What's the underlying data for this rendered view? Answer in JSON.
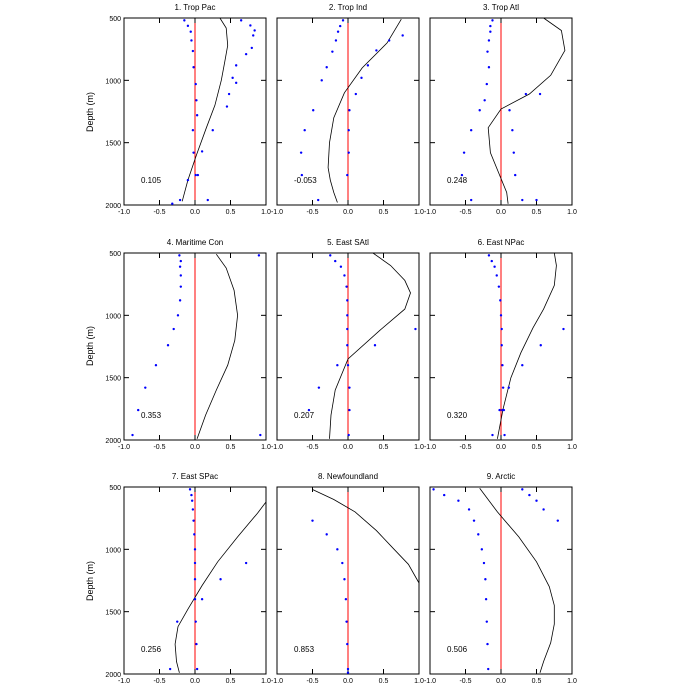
{
  "figure": {
    "ylabel": "Depth (m)",
    "y_ticks": [
      "500",
      "1000",
      "1500",
      "2000"
    ],
    "x_ticks": [
      "-1.0",
      "-0.5",
      "0.0",
      "0.5",
      "1.0"
    ]
  },
  "colors": {
    "curve": "#000000",
    "points": "#0000ff",
    "zero_line": "#ff0000",
    "frame": "#000000"
  },
  "chart_data": [
    {
      "type": "line",
      "title": "1. Trop Pac",
      "annotation": "0.105",
      "xlim": [
        -1,
        1
      ],
      "ylim": [
        500,
        2000
      ],
      "y_inverted": true,
      "line": {
        "x": [
          0.35,
          0.44,
          0.46,
          0.42,
          0.37,
          0.28,
          0.16,
          0.02,
          -0.1,
          -0.18
        ],
        "y": [
          500,
          580,
          720,
          850,
          1000,
          1200,
          1380,
          1600,
          1800,
          1970
        ]
      },
      "points": {
        "x": [
          -0.15,
          -0.1,
          -0.06,
          -0.05,
          -0.03,
          -0.02,
          0.01,
          0.02,
          0.03,
          -0.03,
          -0.02,
          0.04,
          0.18,
          0.48,
          0.53,
          0.58,
          0.72,
          0.8,
          0.82,
          0.84,
          0.78,
          0.65,
          0.58,
          0.45,
          0.25,
          0.1,
          0.01,
          -0.1,
          -0.21,
          -0.32
        ],
        "y": [
          519,
          563,
          610,
          680,
          765,
          895,
          1030,
          1160,
          1280,
          1400,
          1580,
          1760,
          1960,
          1110,
          980,
          880,
          790,
          740,
          640,
          600,
          560,
          519,
          1020,
          1210,
          1400,
          1570,
          1760,
          1800,
          1960,
          1990
        ]
      }
    },
    {
      "type": "line",
      "title": "2. Trop Ind",
      "annotation": "-0.053",
      "xlim": [
        -1,
        1
      ],
      "ylim": [
        500,
        2000
      ],
      "y_inverted": true,
      "line": {
        "x": [
          0.75,
          0.55,
          0.2,
          -0.05,
          -0.2,
          -0.26,
          -0.28,
          -0.25,
          -0.2,
          -0.15
        ],
        "y": [
          510,
          700,
          900,
          1100,
          1300,
          1500,
          1700,
          1800,
          1900,
          1980
        ]
      },
      "points": {
        "x": [
          -0.07,
          -0.11,
          -0.14,
          -0.17,
          -0.22,
          -0.3,
          -0.37,
          -0.49,
          -0.61,
          -0.66,
          -0.65,
          -0.42,
          -0.01,
          0.01,
          0.01,
          0.02,
          0.11,
          0.19,
          0.28,
          0.4,
          0.58,
          0.77
        ],
        "y": [
          519,
          565,
          610,
          680,
          770,
          895,
          1000,
          1240,
          1400,
          1580,
          1760,
          1960,
          1760,
          1580,
          1400,
          1240,
          1110,
          980,
          880,
          760,
          680,
          640
        ]
      }
    },
    {
      "type": "line",
      "title": "3. Trop Atl",
      "annotation": "0.248",
      "xlim": [
        -1,
        1
      ],
      "ylim": [
        500,
        2000
      ],
      "y_inverted": true,
      "line": {
        "x": [
          0.6,
          0.85,
          0.9,
          0.7,
          0.4,
          0.0,
          -0.18,
          -0.15,
          -0.02,
          0.08,
          0.1
        ],
        "y": [
          500,
          600,
          760,
          960,
          1110,
          1230,
          1380,
          1580,
          1760,
          1900,
          1990
        ]
      },
      "points": {
        "x": [
          -0.12,
          -0.15,
          -0.15,
          -0.17,
          -0.19,
          -0.17,
          -0.2,
          -0.23,
          -0.3,
          -0.42,
          -0.52,
          -0.55,
          -0.42,
          0.12,
          0.16,
          0.18,
          0.2,
          0.3,
          0.35,
          0.5,
          0.55
        ],
        "y": [
          519,
          565,
          610,
          680,
          770,
          895,
          1030,
          1160,
          1240,
          1400,
          1580,
          1760,
          1960,
          1240,
          1400,
          1580,
          1760,
          1960,
          1110,
          1960,
          1110
        ]
      }
    },
    {
      "type": "line",
      "title": "4. Maritime Con",
      "annotation": "0.353",
      "xlim": [
        -1,
        1
      ],
      "ylim": [
        500,
        2000
      ],
      "y_inverted": true,
      "line": {
        "x": [
          0.3,
          0.44,
          0.55,
          0.6,
          0.56,
          0.46,
          0.3,
          0.15,
          0.03
        ],
        "y": [
          510,
          620,
          800,
          1000,
          1200,
          1400,
          1600,
          1800,
          1990
        ]
      },
      "points": {
        "x": [
          -0.22,
          -0.2,
          -0.21,
          -0.2,
          -0.2,
          -0.21,
          -0.24,
          -0.3,
          -0.38,
          -0.55,
          -0.7,
          -0.8,
          -0.88,
          0.9,
          0.92
        ],
        "y": [
          519,
          565,
          610,
          680,
          770,
          880,
          1000,
          1110,
          1240,
          1400,
          1580,
          1760,
          1960,
          519,
          1960
        ]
      }
    },
    {
      "type": "line",
      "title": "5. East SAtl",
      "annotation": "0.207",
      "xlim": [
        -1,
        1
      ],
      "ylim": [
        500,
        2000
      ],
      "y_inverted": true,
      "line": {
        "x": [
          0.35,
          0.6,
          0.8,
          0.88,
          0.8,
          0.45,
          0.0,
          -0.18,
          -0.24,
          -0.26
        ],
        "y": [
          500,
          600,
          720,
          820,
          950,
          1120,
          1350,
          1600,
          1800,
          1990
        ]
      },
      "points": {
        "x": [
          -0.25,
          -0.18,
          -0.1,
          -0.05,
          -0.02,
          -0.01,
          -0.01,
          -0.01,
          -0.01,
          0.0,
          0.02,
          0.02,
          0.01,
          0.95,
          0.38,
          -0.15,
          -0.41,
          -0.55
        ],
        "y": [
          519,
          565,
          610,
          680,
          770,
          880,
          1000,
          1110,
          1240,
          1400,
          1580,
          1760,
          1960,
          1110,
          1240,
          1400,
          1580,
          1760
        ]
      }
    },
    {
      "type": "line",
      "title": "6. East NPac",
      "annotation": "0.320",
      "xlim": [
        -1,
        1
      ],
      "ylim": [
        500,
        2000
      ],
      "y_inverted": true,
      "line": {
        "x": [
          0.75,
          0.78,
          0.75,
          0.6,
          0.45,
          0.28,
          0.14,
          0.03,
          -0.05
        ],
        "y": [
          500,
          600,
          760,
          950,
          1100,
          1300,
          1500,
          1750,
          1990
        ]
      },
      "points": {
        "x": [
          -0.17,
          -0.13,
          -0.09,
          -0.06,
          -0.03,
          -0.01,
          0.0,
          0.01,
          0.01,
          0.02,
          0.03,
          0.04,
          0.05,
          0.88,
          0.56,
          0.3,
          0.11,
          0.02,
          -0.02,
          -0.12
        ],
        "y": [
          519,
          565,
          610,
          680,
          770,
          880,
          1000,
          1110,
          1240,
          1400,
          1580,
          1760,
          1960,
          1110,
          1240,
          1400,
          1580,
          1760,
          1760,
          1960
        ]
      }
    },
    {
      "type": "line",
      "title": "7. East SPac",
      "annotation": "0.256",
      "xlim": [
        -1,
        1
      ],
      "ylim": [
        500,
        2000
      ],
      "y_inverted": true,
      "line": {
        "x": [
          1.0,
          0.88,
          0.6,
          0.32,
          0.1,
          -0.1,
          -0.24,
          -0.28,
          -0.26,
          -0.22
        ],
        "y": [
          620,
          710,
          900,
          1100,
          1290,
          1480,
          1620,
          1760,
          1900,
          1990
        ]
      },
      "points": {
        "x": [
          -0.07,
          -0.05,
          -0.04,
          -0.03,
          -0.02,
          -0.01,
          0.0,
          0.0,
          0.0,
          0.0,
          0.01,
          0.02,
          0.03,
          0.72,
          0.36,
          0.1,
          -0.25,
          -0.35
        ],
        "y": [
          519,
          565,
          610,
          680,
          770,
          880,
          1000,
          1110,
          1240,
          1400,
          1580,
          1760,
          1960,
          1110,
          1240,
          1400,
          1580,
          1960
        ]
      }
    },
    {
      "type": "line",
      "title": "8. Newfoundland",
      "annotation": "0.853",
      "xlim": [
        -1,
        1
      ],
      "ylim": [
        500,
        2000
      ],
      "y_inverted": true,
      "line": {
        "x": [
          -0.5,
          -0.2,
          0.1,
          0.4,
          0.65,
          0.85,
          1.0
        ],
        "y": [
          520,
          600,
          700,
          850,
          1000,
          1120,
          1270
        ]
      },
      "points": {
        "x": [
          -0.5,
          -0.3,
          -0.15,
          -0.08,
          -0.05,
          -0.03,
          -0.02,
          -0.01,
          0.0,
          0.0
        ],
        "y": [
          770,
          880,
          1000,
          1110,
          1240,
          1400,
          1580,
          1760,
          1960,
          1990
        ]
      }
    },
    {
      "type": "line",
      "title": "9. Arctic",
      "annotation": "0.506",
      "xlim": [
        -1,
        1
      ],
      "ylim": [
        500,
        2000
      ],
      "y_inverted": true,
      "line": {
        "x": [
          -0.3,
          -0.05,
          0.25,
          0.5,
          0.68,
          0.75,
          0.75,
          0.7,
          0.6,
          0.55
        ],
        "y": [
          510,
          700,
          900,
          1100,
          1300,
          1450,
          1600,
          1750,
          1900,
          1990
        ]
      },
      "points": {
        "x": [
          -0.95,
          -0.8,
          -0.6,
          -0.45,
          -0.38,
          -0.32,
          -0.27,
          -0.24,
          -0.22,
          -0.21,
          -0.2,
          -0.19,
          -0.18,
          0.3,
          0.4,
          0.5,
          0.6,
          0.8
        ],
        "y": [
          519,
          565,
          610,
          680,
          770,
          880,
          1000,
          1110,
          1240,
          1400,
          1580,
          1760,
          1960,
          519,
          565,
          610,
          680,
          770
        ]
      }
    }
  ]
}
